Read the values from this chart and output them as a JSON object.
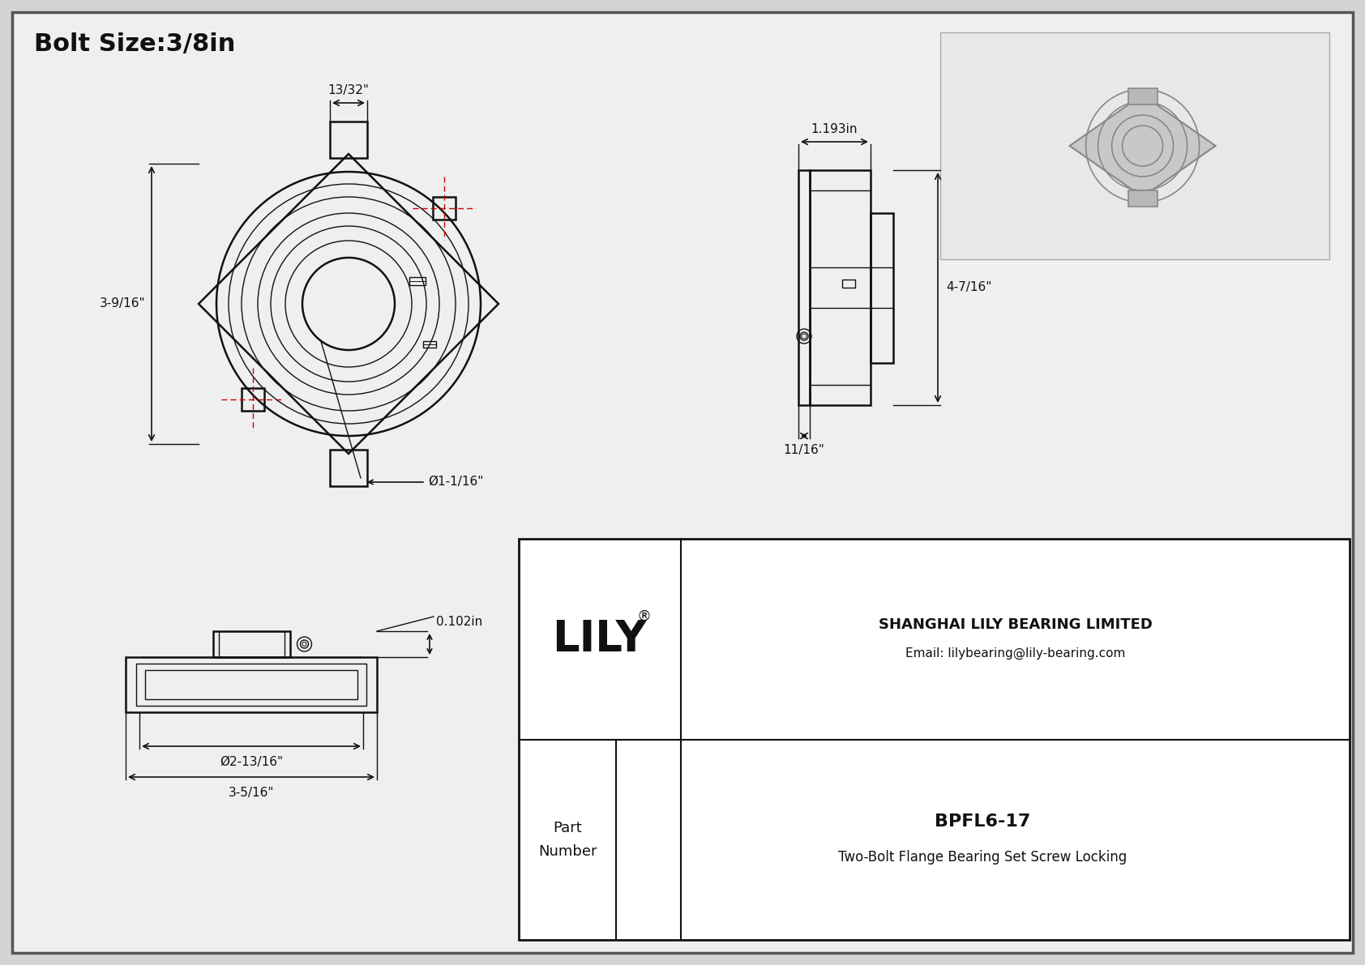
{
  "title": "Bolt Size:3/8in",
  "bg_color": "#d4d4d4",
  "inner_bg": "#efefef",
  "line_color": "#111111",
  "red_dash_color": "#cc0000",
  "company_logo": "LILY",
  "company_reg": "®",
  "company_full": "SHANGHAI LILY BEARING LIMITED",
  "email": "Email: lilybearing@lily-bearing.com",
  "part_label": "Part\nNumber",
  "part_number": "BPFL6-17",
  "part_desc": "Two-Bolt Flange Bearing Set Screw Locking",
  "dim_bolt_width": "13/32\"",
  "dim_height": "3-9/16\"",
  "dim_bore": "Ø1-1/16\"",
  "dim_side_width": "1.193in",
  "dim_side_height": "4-7/16\"",
  "dim_side_bottom": "11/16\"",
  "dim_bottom_depth": "0.102in",
  "dim_bottom_od": "Ø2-13/16\"",
  "dim_bottom_width": "3-5/16\""
}
